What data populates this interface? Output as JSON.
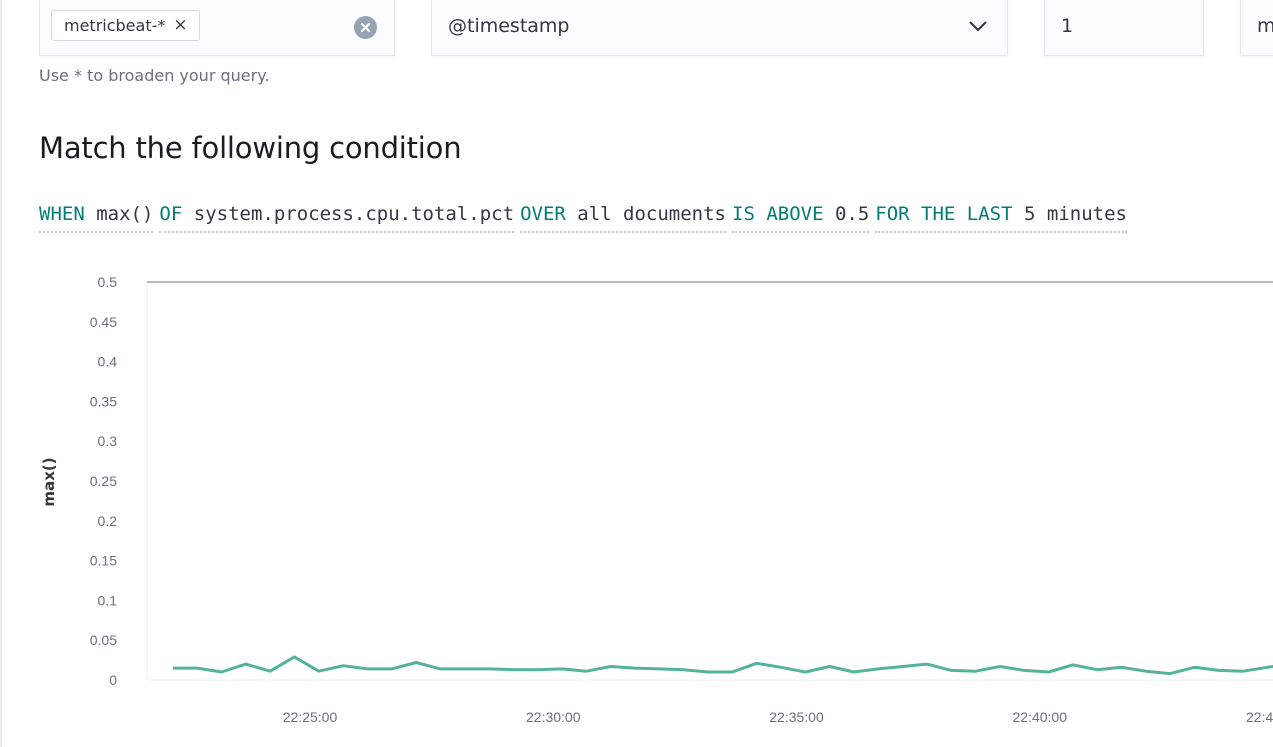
{
  "index_selector": {
    "chip_label": "metricbeat-*",
    "help_text": "Use * to broaden your query."
  },
  "time_field": {
    "value": "@timestamp"
  },
  "window_size": {
    "value": "1"
  },
  "window_unit": {
    "value": "m"
  },
  "section_title": "Match the following condition",
  "condition": {
    "when_kw": "WHEN",
    "agg": "max()",
    "of_kw": "OF",
    "field": "system.process.cpu.total.pct",
    "over_kw": "OVER",
    "over_value": "all documents",
    "threshold_kw": "IS ABOVE",
    "threshold": "0.5",
    "for_kw": "FOR THE LAST",
    "for_value": "5 minutes"
  },
  "colors": {
    "keyword": "#017d73",
    "series": "#54b399",
    "threshold_line": "#bbbbbb"
  },
  "chart_data": {
    "type": "line",
    "ylabel": "max()",
    "ylim": [
      0,
      0.5
    ],
    "yticks": [
      "0.5",
      "0.45",
      "0.4",
      "0.35",
      "0.3",
      "0.25",
      "0.2",
      "0.15",
      "0.1",
      "0.05",
      "0"
    ],
    "xticks": [
      "22:25:00",
      "22:30:00",
      "22:35:00",
      "22:40:00",
      "22:4"
    ],
    "threshold": 0.5,
    "series": [
      {
        "x_minutes_after_2220": [
          1.5,
          2,
          2.5,
          3,
          3.5,
          4,
          4.5,
          5,
          5.5,
          6,
          6.5,
          7,
          7.5,
          8,
          8.5,
          9,
          9.5,
          10,
          10.5,
          11,
          11.5,
          12,
          12.5,
          13,
          13.5,
          14,
          14.5,
          15,
          15.5,
          16,
          16.5,
          17,
          17.5,
          18,
          18.5,
          19,
          19.5,
          20,
          20.5,
          21,
          21.5,
          22,
          22.5,
          23,
          23.5,
          24,
          24.5,
          25,
          25.5
        ],
        "values": [
          0.015,
          0.015,
          0.01,
          0.02,
          0.011,
          0.029,
          0.011,
          0.018,
          0.014,
          0.014,
          0.022,
          0.014,
          0.014,
          0.014,
          0.013,
          0.013,
          0.014,
          0.011,
          0.017,
          0.015,
          0.014,
          0.013,
          0.01,
          0.01,
          0.021,
          0.016,
          0.01,
          0.017,
          0.01,
          0.014,
          0.017,
          0.02,
          0.012,
          0.011,
          0.017,
          0.012,
          0.01,
          0.019,
          0.013,
          0.016,
          0.011,
          0.008,
          0.016,
          0.012,
          0.011,
          0.016,
          0.021,
          0.013,
          0.011
        ]
      }
    ]
  }
}
